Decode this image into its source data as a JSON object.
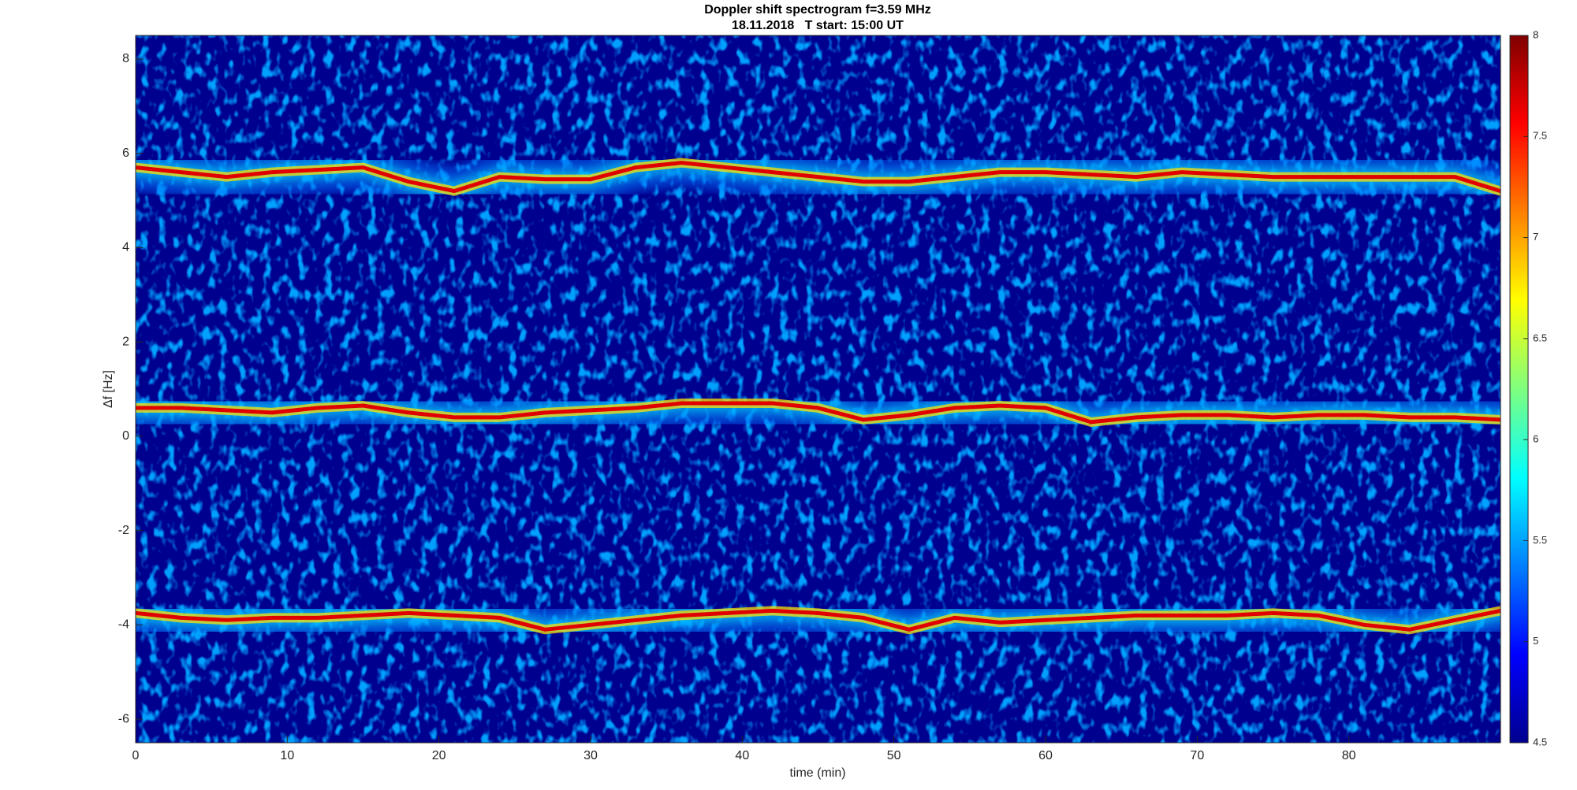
{
  "chart_data": {
    "type": "spectrogram",
    "title": "Doppler shift spectrogram f=3.59 MHz",
    "subtitle": "18.11.2018   T start: 15:00 UT",
    "x_label": "time (min)",
    "y_label": "Δf [Hz]",
    "colormap": "jet",
    "xlim": [
      0,
      90
    ],
    "xticks": [
      0,
      10,
      20,
      30,
      40,
      50,
      60,
      70,
      80
    ],
    "ylim": [
      -6.5,
      8.5
    ],
    "yticks": [
      -6,
      -4,
      -2,
      0,
      2,
      4,
      6,
      8
    ],
    "clim": [
      4.5,
      8
    ],
    "cticks": [
      4.5,
      5,
      5.5,
      6,
      6.5,
      7,
      7.5,
      8
    ],
    "x": [
      0,
      3,
      6,
      9,
      12,
      15,
      18,
      21,
      24,
      27,
      30,
      33,
      36,
      39,
      42,
      45,
      48,
      51,
      54,
      57,
      60,
      63,
      66,
      69,
      72,
      75,
      78,
      81,
      84,
      87,
      90
    ],
    "series": [
      {
        "color": "#e00000",
        "values": [
          5.7,
          5.6,
          5.5,
          5.6,
          5.65,
          5.7,
          5.4,
          5.2,
          5.5,
          5.45,
          5.45,
          5.7,
          5.8,
          5.7,
          5.6,
          5.5,
          5.4,
          5.4,
          5.5,
          5.6,
          5.6,
          5.55,
          5.5,
          5.6,
          5.55,
          5.5,
          5.5,
          5.5,
          5.5,
          5.5,
          5.2
        ]
      },
      {
        "color": "#e00000",
        "values": [
          0.6,
          0.6,
          0.55,
          0.5,
          0.6,
          0.65,
          0.5,
          0.4,
          0.4,
          0.5,
          0.55,
          0.6,
          0.7,
          0.7,
          0.7,
          0.6,
          0.35,
          0.45,
          0.6,
          0.65,
          0.6,
          0.3,
          0.4,
          0.45,
          0.45,
          0.4,
          0.45,
          0.45,
          0.4,
          0.4,
          0.35
        ]
      },
      {
        "color": "#e00000",
        "values": [
          -3.75,
          -3.85,
          -3.9,
          -3.85,
          -3.85,
          -3.8,
          -3.75,
          -3.8,
          -3.85,
          -4.1,
          -4.0,
          -3.9,
          -3.8,
          -3.75,
          -3.7,
          -3.75,
          -3.85,
          -4.1,
          -3.85,
          -3.95,
          -3.9,
          -3.85,
          -3.8,
          -3.8,
          -3.8,
          -3.75,
          -3.8,
          -4.0,
          -4.1,
          -3.9,
          -3.7
        ]
      }
    ]
  }
}
